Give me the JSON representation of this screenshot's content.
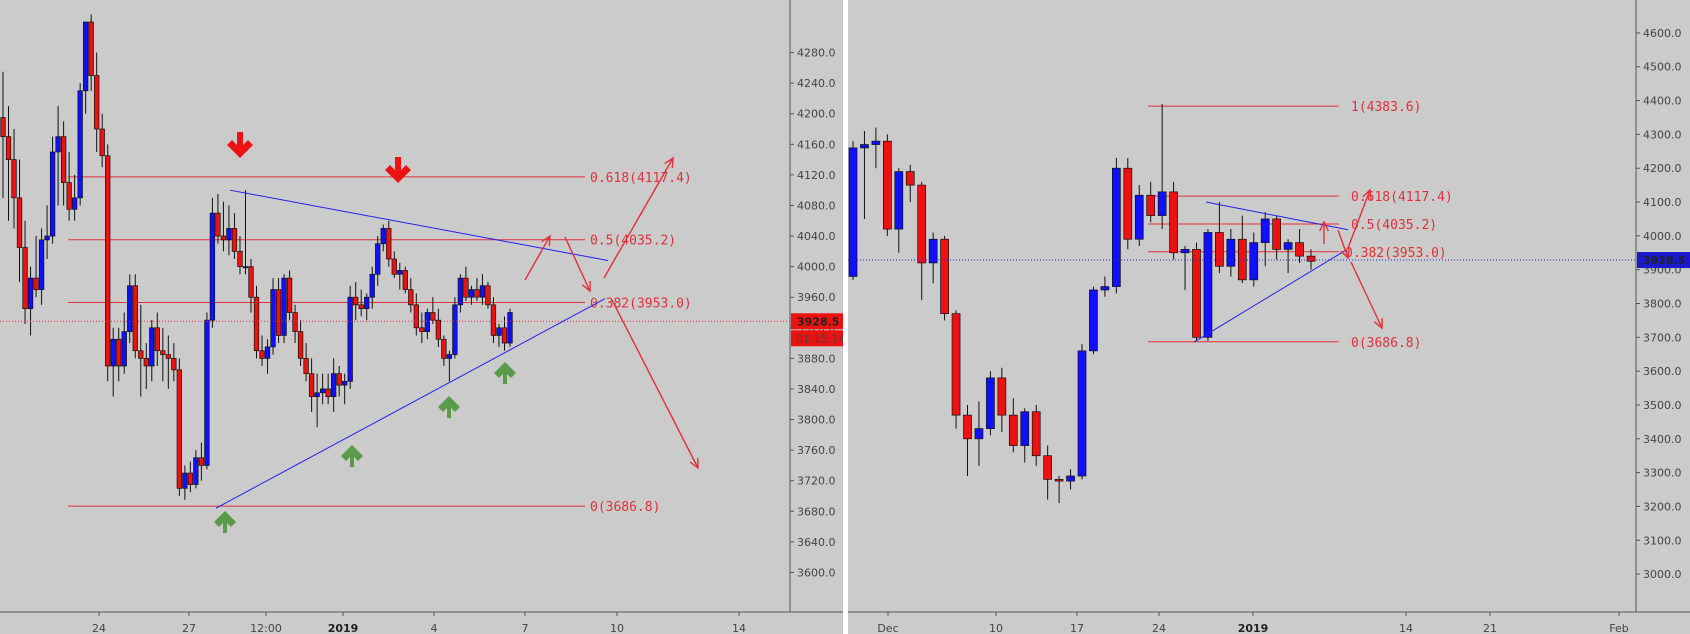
{
  "colors": {
    "background": "#cbcbcb",
    "bull_candle": "#1010ff",
    "bear_candle": "#ee1111",
    "fib_line": "#e3303a",
    "trendline": "#2020ee",
    "arrow_up": "#5a9a48",
    "arrow_down": "#ee1111",
    "price_badge": "#ee1111",
    "price_badge_right": "#1a1acc"
  },
  "chart_data": [
    {
      "type": "candlestick",
      "title": "",
      "price_axis": {
        "range": [
          3560,
          4320
        ],
        "ticks": [
          "4280.0",
          "4240.0",
          "4200.0",
          "4160.0",
          "4120.0",
          "4080.0",
          "4040.0",
          "4000.0",
          "3960.0",
          "3920.0",
          "3880.0",
          "3840.0",
          "3800.0",
          "3760.0",
          "3720.0",
          "3680.0",
          "3640.0",
          "3600.0"
        ]
      },
      "time_axis": {
        "labels": [
          {
            "text": "24",
            "bold": false
          },
          {
            "text": "27",
            "bold": false
          },
          {
            "text": "12:00",
            "bold": false
          },
          {
            "text": "2019",
            "bold": true
          },
          {
            "text": "4",
            "bold": false
          },
          {
            "text": "7",
            "bold": false
          },
          {
            "text": "10",
            "bold": false
          },
          {
            "text": "14",
            "bold": false
          }
        ]
      },
      "current_price": "3928.5",
      "countdown": "01:15:14",
      "fib_levels": [
        {
          "label": "0.618(4117.4)",
          "price": 4117.4
        },
        {
          "label": "0.5(4035.2)",
          "price": 4035.2
        },
        {
          "label": "0.382(3953.0)",
          "price": 3953.0
        },
        {
          "label": "0(3686.8)",
          "price": 3686.8
        }
      ],
      "trendlines": [
        {
          "name": "descending-resistance",
          "from_price": 4100,
          "to_price": 4008
        },
        {
          "name": "ascending-support",
          "from_price": 3685,
          "to_price": 3960
        }
      ],
      "candles": [
        {
          "o": 4195,
          "h": 4255,
          "l": 4090,
          "c": 4170
        },
        {
          "o": 4170,
          "h": 4210,
          "l": 4060,
          "c": 4140
        },
        {
          "o": 4140,
          "h": 4180,
          "l": 4050,
          "c": 4090
        },
        {
          "o": 4090,
          "h": 4140,
          "l": 3980,
          "c": 4025
        },
        {
          "o": 4025,
          "h": 4060,
          "l": 3925,
          "c": 3945
        },
        {
          "o": 3945,
          "h": 4000,
          "l": 3910,
          "c": 3985
        },
        {
          "o": 3985,
          "h": 4040,
          "l": 3960,
          "c": 3970
        },
        {
          "o": 3970,
          "h": 4050,
          "l": 3950,
          "c": 4035
        },
        {
          "o": 4035,
          "h": 4080,
          "l": 4010,
          "c": 4040
        },
        {
          "o": 4040,
          "h": 4170,
          "l": 4030,
          "c": 4150
        },
        {
          "o": 4150,
          "h": 4210,
          "l": 4080,
          "c": 4170
        },
        {
          "o": 4170,
          "h": 4190,
          "l": 4080,
          "c": 4110
        },
        {
          "o": 4110,
          "h": 4150,
          "l": 4060,
          "c": 4075
        },
        {
          "o": 4075,
          "h": 4120,
          "l": 4060,
          "c": 4090
        },
        {
          "o": 4090,
          "h": 4240,
          "l": 4080,
          "c": 4230
        },
        {
          "o": 4230,
          "h": 4320,
          "l": 4200,
          "c": 4320
        },
        {
          "o": 4320,
          "h": 4330,
          "l": 4230,
          "c": 4250
        },
        {
          "o": 4250,
          "h": 4280,
          "l": 4150,
          "c": 4180
        },
        {
          "o": 4180,
          "h": 4200,
          "l": 4130,
          "c": 4145
        },
        {
          "o": 4145,
          "h": 4160,
          "l": 3850,
          "c": 3870
        },
        {
          "o": 3870,
          "h": 3920,
          "l": 3830,
          "c": 3905
        },
        {
          "o": 3905,
          "h": 3920,
          "l": 3850,
          "c": 3870
        },
        {
          "o": 3870,
          "h": 3940,
          "l": 3860,
          "c": 3915
        },
        {
          "o": 3915,
          "h": 3990,
          "l": 3900,
          "c": 3975
        },
        {
          "o": 3975,
          "h": 3990,
          "l": 3880,
          "c": 3890
        },
        {
          "o": 3890,
          "h": 3950,
          "l": 3830,
          "c": 3880
        },
        {
          "o": 3880,
          "h": 3900,
          "l": 3840,
          "c": 3870
        },
        {
          "o": 3870,
          "h": 3930,
          "l": 3850,
          "c": 3920
        },
        {
          "o": 3920,
          "h": 3940,
          "l": 3870,
          "c": 3890
        },
        {
          "o": 3890,
          "h": 3920,
          "l": 3850,
          "c": 3885
        },
        {
          "o": 3885,
          "h": 3910,
          "l": 3840,
          "c": 3880
        },
        {
          "o": 3880,
          "h": 3900,
          "l": 3850,
          "c": 3865
        },
        {
          "o": 3865,
          "h": 3880,
          "l": 3700,
          "c": 3710
        },
        {
          "o": 3710,
          "h": 3740,
          "l": 3695,
          "c": 3730
        },
        {
          "o": 3730,
          "h": 3745,
          "l": 3705,
          "c": 3715
        },
        {
          "o": 3715,
          "h": 3760,
          "l": 3710,
          "c": 3750
        },
        {
          "o": 3750,
          "h": 3770,
          "l": 3720,
          "c": 3740
        },
        {
          "o": 3740,
          "h": 3940,
          "l": 3735,
          "c": 3930
        },
        {
          "o": 3930,
          "h": 4090,
          "l": 3920,
          "c": 4070
        },
        {
          "o": 4070,
          "h": 4095,
          "l": 4030,
          "c": 4040
        },
        {
          "o": 4040,
          "h": 4085,
          "l": 4020,
          "c": 4035
        },
        {
          "o": 4035,
          "h": 4080,
          "l": 4015,
          "c": 4050
        },
        {
          "o": 4050,
          "h": 4070,
          "l": 4010,
          "c": 4020
        },
        {
          "o": 4020,
          "h": 4040,
          "l": 3990,
          "c": 4000
        },
        {
          "o": 4000,
          "h": 4100,
          "l": 3990,
          "c": 4000
        },
        {
          "o": 4000,
          "h": 4010,
          "l": 3940,
          "c": 3960
        },
        {
          "o": 3960,
          "h": 3975,
          "l": 3880,
          "c": 3890
        },
        {
          "o": 3890,
          "h": 3910,
          "l": 3870,
          "c": 3880
        },
        {
          "o": 3880,
          "h": 3905,
          "l": 3860,
          "c": 3895
        },
        {
          "o": 3895,
          "h": 3985,
          "l": 3885,
          "c": 3970
        },
        {
          "o": 3970,
          "h": 3985,
          "l": 3900,
          "c": 3910
        },
        {
          "o": 3910,
          "h": 3990,
          "l": 3900,
          "c": 3985
        },
        {
          "o": 3985,
          "h": 3995,
          "l": 3930,
          "c": 3940
        },
        {
          "o": 3940,
          "h": 3950,
          "l": 3900,
          "c": 3915
        },
        {
          "o": 3915,
          "h": 3930,
          "l": 3870,
          "c": 3880
        },
        {
          "o": 3880,
          "h": 3900,
          "l": 3850,
          "c": 3860
        },
        {
          "o": 3860,
          "h": 3880,
          "l": 3810,
          "c": 3830
        },
        {
          "o": 3830,
          "h": 3860,
          "l": 3790,
          "c": 3835
        },
        {
          "o": 3835,
          "h": 3860,
          "l": 3820,
          "c": 3840
        },
        {
          "o": 3840,
          "h": 3860,
          "l": 3820,
          "c": 3830
        },
        {
          "o": 3830,
          "h": 3880,
          "l": 3810,
          "c": 3860
        },
        {
          "o": 3860,
          "h": 3870,
          "l": 3830,
          "c": 3845
        },
        {
          "o": 3845,
          "h": 3860,
          "l": 3820,
          "c": 3850
        },
        {
          "o": 3850,
          "h": 3975,
          "l": 3840,
          "c": 3960
        },
        {
          "o": 3960,
          "h": 3980,
          "l": 3930,
          "c": 3950
        },
        {
          "o": 3950,
          "h": 3970,
          "l": 3935,
          "c": 3945
        },
        {
          "o": 3945,
          "h": 3965,
          "l": 3930,
          "c": 3960
        },
        {
          "o": 3960,
          "h": 4000,
          "l": 3945,
          "c": 3990
        },
        {
          "o": 3990,
          "h": 4040,
          "l": 3975,
          "c": 4030
        },
        {
          "o": 4030,
          "h": 4055,
          "l": 4020,
          "c": 4050
        },
        {
          "o": 4050,
          "h": 4060,
          "l": 4000,
          "c": 4010
        },
        {
          "o": 4010,
          "h": 4020,
          "l": 3985,
          "c": 3990
        },
        {
          "o": 3990,
          "h": 4005,
          "l": 3970,
          "c": 3995
        },
        {
          "o": 3995,
          "h": 4000,
          "l": 3965,
          "c": 3970
        },
        {
          "o": 3970,
          "h": 3985,
          "l": 3940,
          "c": 3950
        },
        {
          "o": 3950,
          "h": 3965,
          "l": 3910,
          "c": 3920
        },
        {
          "o": 3920,
          "h": 3940,
          "l": 3900,
          "c": 3915
        },
        {
          "o": 3915,
          "h": 3945,
          "l": 3905,
          "c": 3940
        },
        {
          "o": 3940,
          "h": 3960,
          "l": 3925,
          "c": 3930
        },
        {
          "o": 3930,
          "h": 3945,
          "l": 3895,
          "c": 3905
        },
        {
          "o": 3905,
          "h": 3910,
          "l": 3870,
          "c": 3880
        },
        {
          "o": 3880,
          "h": 3890,
          "l": 3850,
          "c": 3885
        },
        {
          "o": 3885,
          "h": 3960,
          "l": 3880,
          "c": 3950
        },
        {
          "o": 3950,
          "h": 3990,
          "l": 3940,
          "c": 3985
        },
        {
          "o": 3985,
          "h": 4000,
          "l": 3955,
          "c": 3960
        },
        {
          "o": 3960,
          "h": 3975,
          "l": 3950,
          "c": 3970
        },
        {
          "o": 3970,
          "h": 3985,
          "l": 3955,
          "c": 3960
        },
        {
          "o": 3960,
          "h": 3990,
          "l": 3950,
          "c": 3975
        },
        {
          "o": 3975,
          "h": 3980,
          "l": 3945,
          "c": 3950
        },
        {
          "o": 3950,
          "h": 3960,
          "l": 3900,
          "c": 3910
        },
        {
          "o": 3910,
          "h": 3925,
          "l": 3895,
          "c": 3920
        },
        {
          "o": 3920,
          "h": 3935,
          "l": 3890,
          "c": 3900
        },
        {
          "o": 3900,
          "h": 3945,
          "l": 3895,
          "c": 3940
        }
      ]
    },
    {
      "type": "candlestick",
      "title": "",
      "price_axis": {
        "range": [
          2950,
          4650
        ],
        "ticks": [
          "4600.0",
          "4500.0",
          "4400.0",
          "4300.0",
          "4200.0",
          "4100.0",
          "4000.0",
          "3900.0",
          "3800.0",
          "3700.0",
          "3600.0",
          "3500.0",
          "3400.0",
          "3300.0",
          "3200.0",
          "3100.0",
          "3000.0"
        ]
      },
      "time_axis": {
        "labels": [
          {
            "text": "Dec",
            "bold": false
          },
          {
            "text": "10",
            "bold": false
          },
          {
            "text": "17",
            "bold": false
          },
          {
            "text": "24",
            "bold": false
          },
          {
            "text": "2019",
            "bold": true
          },
          {
            "text": "14",
            "bold": false
          },
          {
            "text": "21",
            "bold": false
          },
          {
            "text": "Feb",
            "bold": false
          }
        ]
      },
      "current_price": "3928.5",
      "fib_levels": [
        {
          "label": "1(4383.6)",
          "price": 4383.6
        },
        {
          "label": "0.618(4117.4)",
          "price": 4117.4
        },
        {
          "label": "0.5(4035.2)",
          "price": 4035.2
        },
        {
          "label": "0.382(3953.0)",
          "price": 3953.0
        },
        {
          "label": "0(3686.8)",
          "price": 3686.8
        }
      ],
      "trendlines": [
        {
          "name": "descending-resistance",
          "from_price": 4100,
          "to_price": 4020
        },
        {
          "name": "ascending-support",
          "from_price": 3686,
          "to_price": 3960
        }
      ],
      "candles": [
        {
          "o": 3880,
          "h": 4280,
          "l": 3870,
          "c": 4260
        },
        {
          "o": 4260,
          "h": 4310,
          "l": 4050,
          "c": 4270
        },
        {
          "o": 4270,
          "h": 4320,
          "l": 4200,
          "c": 4280
        },
        {
          "o": 4280,
          "h": 4300,
          "l": 4000,
          "c": 4020
        },
        {
          "o": 4020,
          "h": 4200,
          "l": 3950,
          "c": 4190
        },
        {
          "o": 4190,
          "h": 4210,
          "l": 4100,
          "c": 4150
        },
        {
          "o": 4150,
          "h": 4160,
          "l": 3810,
          "c": 3920
        },
        {
          "o": 3920,
          "h": 4010,
          "l": 3860,
          "c": 3990
        },
        {
          "o": 3990,
          "h": 4000,
          "l": 3750,
          "c": 3770
        },
        {
          "o": 3770,
          "h": 3780,
          "l": 3430,
          "c": 3470
        },
        {
          "o": 3470,
          "h": 3500,
          "l": 3290,
          "c": 3400
        },
        {
          "o": 3400,
          "h": 3510,
          "l": 3320,
          "c": 3430
        },
        {
          "o": 3430,
          "h": 3600,
          "l": 3410,
          "c": 3580
        },
        {
          "o": 3580,
          "h": 3610,
          "l": 3420,
          "c": 3470
        },
        {
          "o": 3470,
          "h": 3520,
          "l": 3360,
          "c": 3380
        },
        {
          "o": 3380,
          "h": 3490,
          "l": 3330,
          "c": 3480
        },
        {
          "o": 3480,
          "h": 3500,
          "l": 3320,
          "c": 3350
        },
        {
          "o": 3350,
          "h": 3380,
          "l": 3220,
          "c": 3280
        },
        {
          "o": 3280,
          "h": 3290,
          "l": 3210,
          "c": 3275
        },
        {
          "o": 3275,
          "h": 3310,
          "l": 3250,
          "c": 3290
        },
        {
          "o": 3290,
          "h": 3680,
          "l": 3280,
          "c": 3660
        },
        {
          "o": 3660,
          "h": 3850,
          "l": 3650,
          "c": 3840
        },
        {
          "o": 3840,
          "h": 3880,
          "l": 3820,
          "c": 3850
        },
        {
          "o": 3850,
          "h": 4230,
          "l": 3830,
          "c": 4200
        },
        {
          "o": 4200,
          "h": 4230,
          "l": 3960,
          "c": 3990
        },
        {
          "o": 3990,
          "h": 4150,
          "l": 3970,
          "c": 4120
        },
        {
          "o": 4120,
          "h": 4160,
          "l": 4040,
          "c": 4060
        },
        {
          "o": 4060,
          "h": 4390,
          "l": 4020,
          "c": 4130
        },
        {
          "o": 4130,
          "h": 4160,
          "l": 3930,
          "c": 3950
        },
        {
          "o": 3950,
          "h": 3970,
          "l": 3840,
          "c": 3960
        },
        {
          "o": 3960,
          "h": 3980,
          "l": 3690,
          "c": 3700
        },
        {
          "o": 3700,
          "h": 4020,
          "l": 3690,
          "c": 4010
        },
        {
          "o": 4010,
          "h": 4100,
          "l": 3890,
          "c": 3910
        },
        {
          "o": 3910,
          "h": 4020,
          "l": 3880,
          "c": 3990
        },
        {
          "o": 3990,
          "h": 4060,
          "l": 3860,
          "c": 3870
        },
        {
          "o": 3870,
          "h": 4010,
          "l": 3850,
          "c": 3980
        },
        {
          "o": 3980,
          "h": 4070,
          "l": 3910,
          "c": 4050
        },
        {
          "o": 4050,
          "h": 4060,
          "l": 3930,
          "c": 3960
        },
        {
          "o": 3960,
          "h": 3990,
          "l": 3890,
          "c": 3980
        },
        {
          "o": 3980,
          "h": 4020,
          "l": 3920,
          "c": 3940
        },
        {
          "o": 3940,
          "h": 3960,
          "l": 3900,
          "c": 3925
        }
      ]
    }
  ]
}
